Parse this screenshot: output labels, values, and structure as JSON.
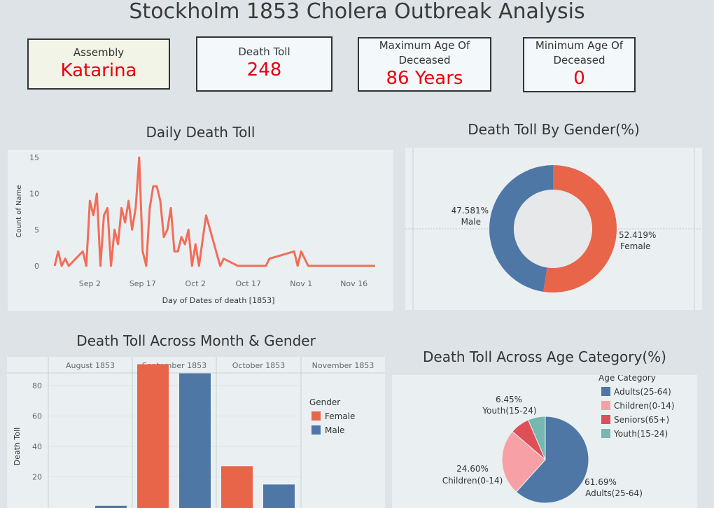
{
  "dashboard": {
    "title": "Stockholm 1853 Cholera Outbreak Analysis"
  },
  "kpis": [
    {
      "label": "Assembly",
      "value": "Katarina"
    },
    {
      "label": "Death Toll",
      "value": "248"
    },
    {
      "label": "Maximum Age Of Deceased",
      "value": "86 Years"
    },
    {
      "label": "Minimum Age Of Deceased",
      "value": "0"
    }
  ],
  "colors": {
    "female": "#e8654a",
    "male": "#4e77a6",
    "line": "#f26d58",
    "alert": "#e8000e"
  },
  "chart_data": [
    {
      "type": "line",
      "title": "Daily Death Toll",
      "xlabel": "Day of Dates of death [1853]",
      "ylabel": "Count of Name",
      "x_ticks": [
        "Sep 2",
        "Sep 17",
        "Oct 2",
        "Oct 17",
        "Nov 1",
        "Nov 16"
      ],
      "y_ticks": [
        0,
        5,
        10,
        15
      ],
      "ylim": [
        0,
        15
      ],
      "x_range": [
        "1853-08-21",
        "1853-11-26"
      ],
      "grid": false,
      "points": [
        {
          "x": "1853-08-23",
          "y": 0
        },
        {
          "x": "1853-08-24",
          "y": 2
        },
        {
          "x": "1853-08-25",
          "y": 0
        },
        {
          "x": "1853-08-26",
          "y": 1
        },
        {
          "x": "1853-08-27",
          "y": 0
        },
        {
          "x": "1853-08-31",
          "y": 2
        },
        {
          "x": "1853-09-01",
          "y": 0
        },
        {
          "x": "1853-09-02",
          "y": 9
        },
        {
          "x": "1853-09-03",
          "y": 7
        },
        {
          "x": "1853-09-04",
          "y": 10
        },
        {
          "x": "1853-09-05",
          "y": 0
        },
        {
          "x": "1853-09-06",
          "y": 7
        },
        {
          "x": "1853-09-07",
          "y": 8
        },
        {
          "x": "1853-09-08",
          "y": 0
        },
        {
          "x": "1853-09-09",
          "y": 5
        },
        {
          "x": "1853-09-10",
          "y": 3
        },
        {
          "x": "1853-09-11",
          "y": 8
        },
        {
          "x": "1853-09-12",
          "y": 6
        },
        {
          "x": "1853-09-13",
          "y": 9
        },
        {
          "x": "1853-09-14",
          "y": 5
        },
        {
          "x": "1853-09-15",
          "y": 8
        },
        {
          "x": "1853-09-16",
          "y": 15
        },
        {
          "x": "1853-09-17",
          "y": 2
        },
        {
          "x": "1853-09-18",
          "y": 0
        },
        {
          "x": "1853-09-19",
          "y": 8
        },
        {
          "x": "1853-09-20",
          "y": 11
        },
        {
          "x": "1853-09-21",
          "y": 11
        },
        {
          "x": "1853-09-22",
          "y": 9
        },
        {
          "x": "1853-09-23",
          "y": 4
        },
        {
          "x": "1853-09-24",
          "y": 5
        },
        {
          "x": "1853-09-25",
          "y": 8
        },
        {
          "x": "1853-09-26",
          "y": 2
        },
        {
          "x": "1853-09-27",
          "y": 2
        },
        {
          "x": "1853-09-28",
          "y": 4
        },
        {
          "x": "1853-09-29",
          "y": 3
        },
        {
          "x": "1853-09-30",
          "y": 5
        },
        {
          "x": "1853-10-01",
          "y": 0
        },
        {
          "x": "1853-10-02",
          "y": 3
        },
        {
          "x": "1853-10-03",
          "y": 0
        },
        {
          "x": "1853-10-05",
          "y": 7
        },
        {
          "x": "1853-10-09",
          "y": 0
        },
        {
          "x": "1853-10-10",
          "y": 1
        },
        {
          "x": "1853-10-14",
          "y": 0
        },
        {
          "x": "1853-10-22",
          "y": 0
        },
        {
          "x": "1853-10-23",
          "y": 1
        },
        {
          "x": "1853-10-30",
          "y": 2
        },
        {
          "x": "1853-10-31",
          "y": 0
        },
        {
          "x": "1853-11-01",
          "y": 2
        },
        {
          "x": "1853-11-03",
          "y": 0
        },
        {
          "x": "1853-11-22",
          "y": 0
        }
      ]
    },
    {
      "type": "pie",
      "title": "Death Toll By Gender(%)",
      "donut": true,
      "slices": [
        {
          "label": "Female",
          "value": 52.419,
          "display": "52.419%"
        },
        {
          "label": "Male",
          "value": 47.581,
          "display": "47.581%"
        }
      ]
    },
    {
      "type": "bar",
      "title": "Death Toll Across Month & Gender",
      "ylabel": "Death Toll",
      "categories": [
        "August 1853",
        "September 1853",
        "October 1853",
        "November 1853"
      ],
      "y_ticks": [
        20,
        40,
        60,
        80
      ],
      "ylim": [
        0,
        92
      ],
      "legend_title": "Gender",
      "legend_position": "right",
      "series": [
        {
          "name": "Female",
          "values": [
            0,
            94,
            27,
            0
          ]
        },
        {
          "name": "Male",
          "values": [
            1,
            88,
            15,
            0
          ]
        }
      ]
    },
    {
      "type": "pie",
      "title": "Death Toll Across Age Category(%)",
      "legend_title": "Age Category",
      "legend_position": "top-right",
      "legend": [
        "Adults(25-64)",
        "Children(0-14)",
        "Seniors(65+)",
        "Youth(15-24)"
      ],
      "slices": [
        {
          "label": "Adults(25-64)",
          "value": 61.69,
          "display": "61.69%",
          "color": "#4e77a6"
        },
        {
          "label": "Children(0-14)",
          "value": 24.6,
          "display": "24.60%",
          "color": "#f7a1a7"
        },
        {
          "label": "Seniors(65+)",
          "value": 7.26,
          "display": "",
          "color": "#df4f58"
        },
        {
          "label": "Youth(15-24)",
          "value": 6.45,
          "display": "6.45%",
          "color": "#76b7b2"
        }
      ]
    }
  ]
}
